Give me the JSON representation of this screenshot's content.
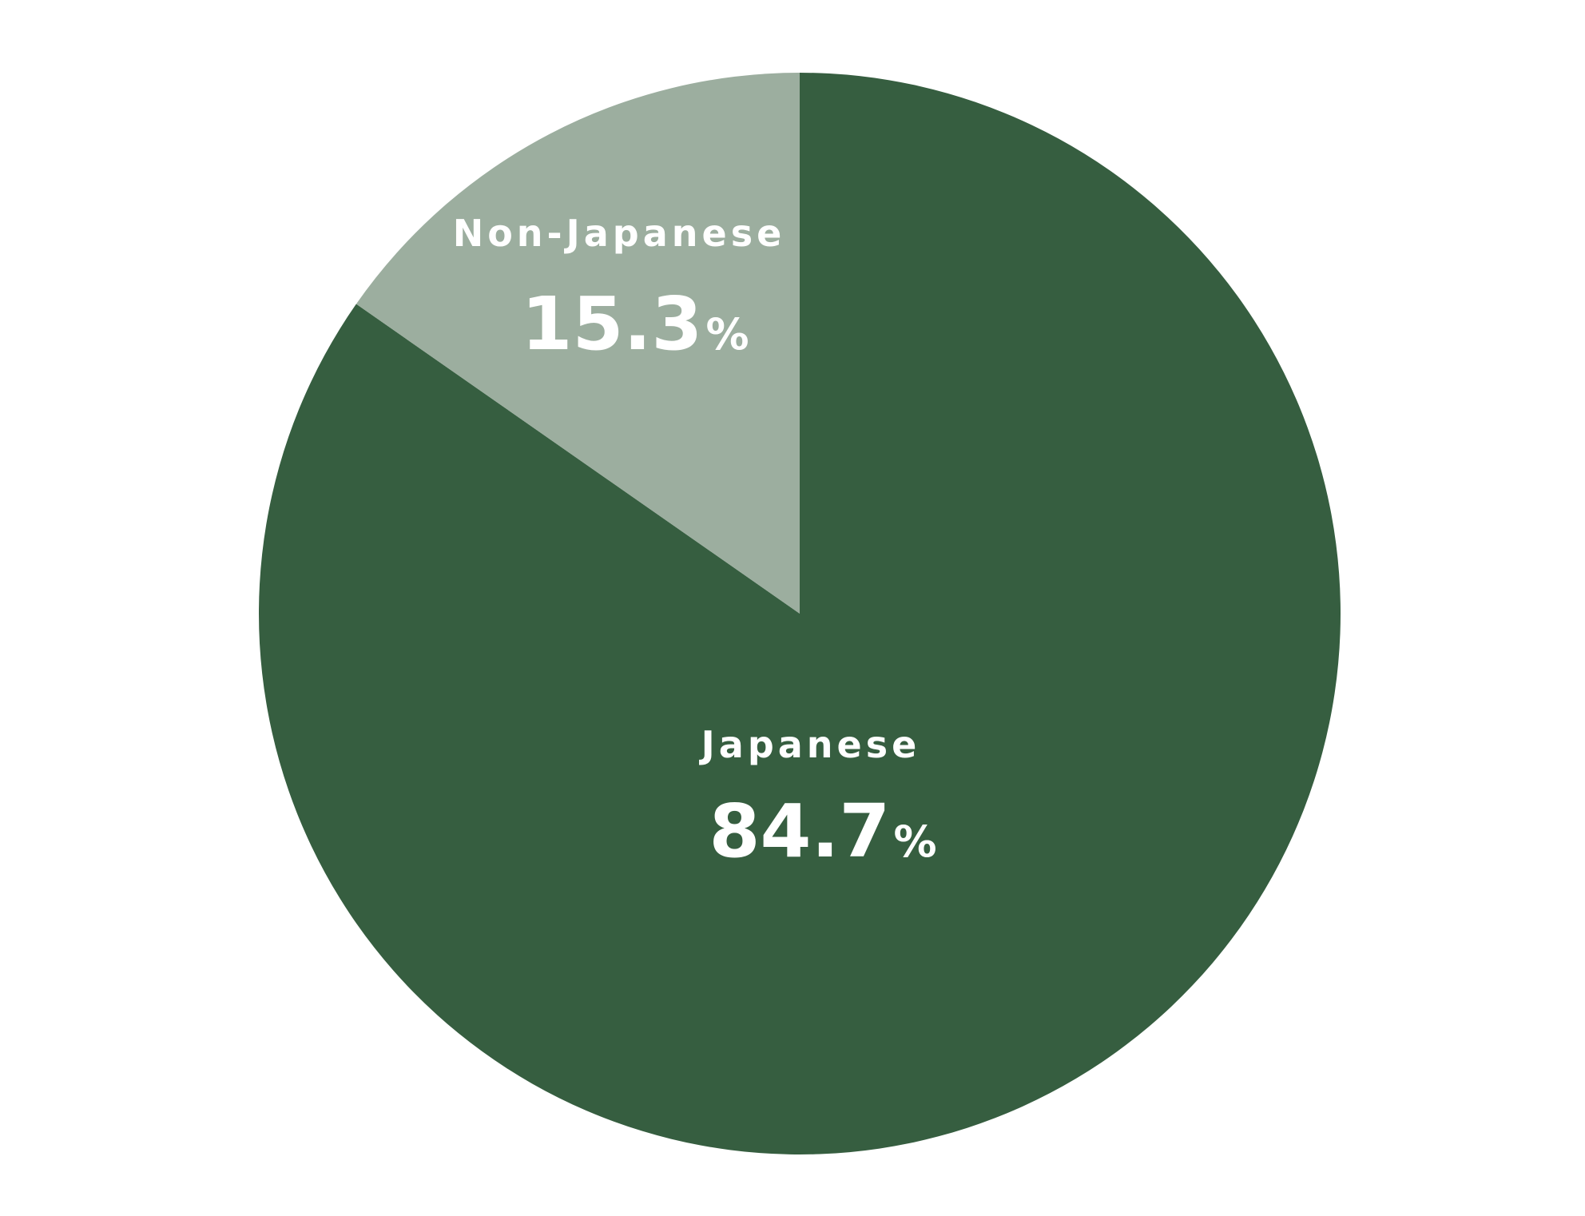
{
  "chart_data": {
    "type": "pie",
    "categories": [
      "Japanese",
      "Non-Japanese"
    ],
    "values": [
      84.7,
      15.3
    ],
    "value_labels": [
      "84.7%",
      "15.3%"
    ],
    "colors": [
      "#365e40",
      "#9cae9f"
    ]
  }
}
